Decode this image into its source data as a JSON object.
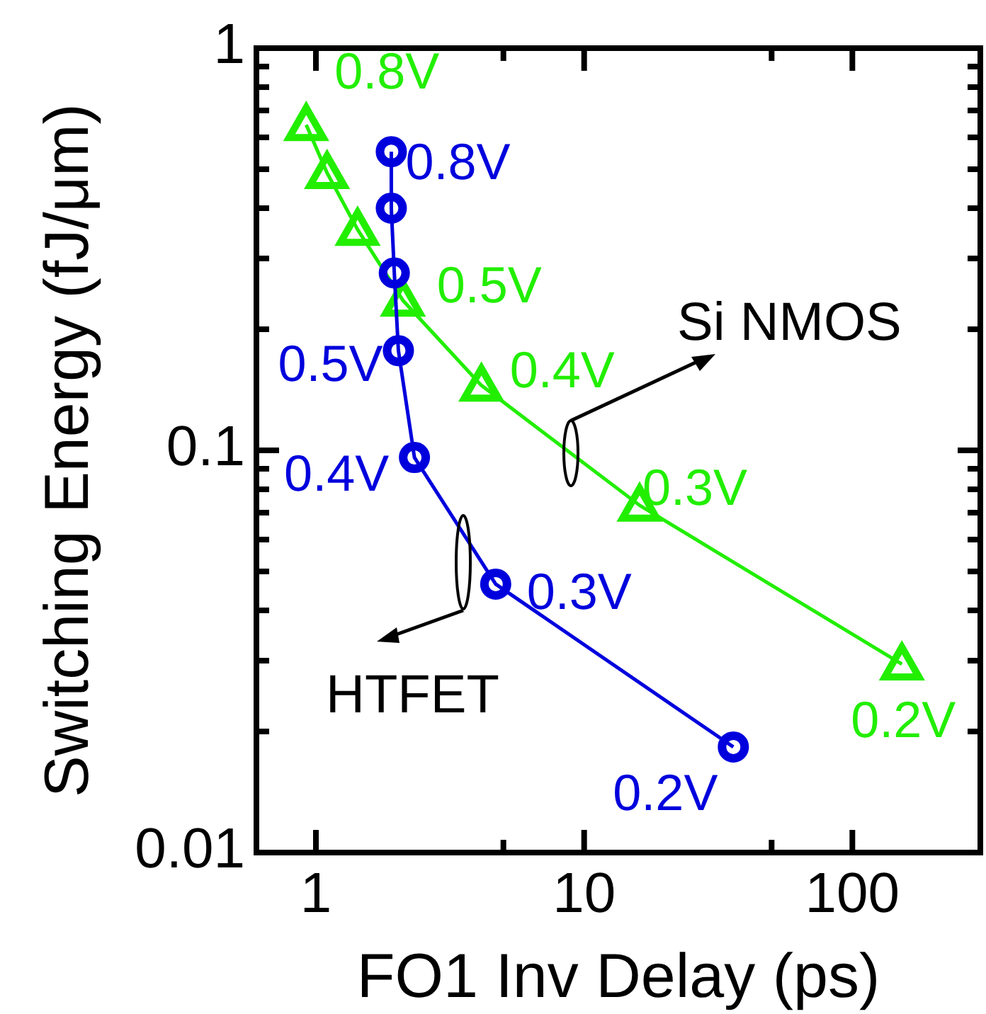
{
  "chart_data": {
    "type": "line",
    "xlabel": "FO1 Inv Delay (ps)",
    "ylabel": "Switching Energy  (fJ/μm)",
    "log": "xy",
    "xlim": [
      0.6,
      300
    ],
    "ylim": [
      0.01,
      1
    ],
    "xticks": [
      1,
      10,
      100,
      {
        "value": 5,
        "label": null
      },
      {
        "value": 50,
        "label": null
      }
    ],
    "yticks": [
      0.01,
      0.1,
      1,
      {
        "value": 0.02,
        "label": null
      },
      {
        "value": 0.03,
        "label": null
      },
      {
        "value": 0.04,
        "label": null
      },
      {
        "value": 0.05,
        "label": null
      },
      {
        "value": 0.06,
        "label": null
      },
      {
        "value": 0.07,
        "label": null
      },
      {
        "value": 0.08,
        "label": null
      },
      {
        "value": 0.09,
        "label": null
      },
      {
        "value": 0.2,
        "label": null
      },
      {
        "value": 0.3,
        "label": null
      },
      {
        "value": 0.4,
        "label": null
      },
      {
        "value": 0.5,
        "label": null
      },
      {
        "value": 0.6,
        "label": null
      },
      {
        "value": 0.7,
        "label": null
      },
      {
        "value": 0.8,
        "label": null
      },
      {
        "value": 0.9,
        "label": null
      }
    ],
    "line_style": "solid",
    "grid": false,
    "series": [
      {
        "color": "#22ee00",
        "marker": "triangle",
        "x": [
          0.92,
          1.1,
          1.43,
          2.11,
          4.14,
          16.1,
          153
        ],
        "values": [
          0.645,
          0.49,
          0.354,
          0.236,
          0.145,
          0.073,
          0.0294
        ]
      },
      {
        "color": "#0000dd",
        "marker": "circle",
        "x": [
          1.91,
          1.91,
          1.96,
          2.03,
          2.33,
          4.68,
          36
        ],
        "values": [
          0.553,
          0.4,
          0.276,
          0.177,
          0.096,
          0.0465,
          0.0183
        ]
      }
    ],
    "annotations": [
      {
        "text": "0.8V",
        "x": 0.92,
        "y": 0.645
      },
      {
        "text": "0.5V",
        "x": 2.11,
        "y": 0.236
      },
      {
        "text": "0.4V",
        "x": 4.14,
        "y": 0.145
      },
      {
        "text": "0.3V",
        "x": 16.1,
        "y": 0.073
      },
      {
        "text": "0.2V",
        "x": 153,
        "y": 0.0294
      },
      {
        "text": "0.8V",
        "x": 1.91,
        "y": 0.553
      },
      {
        "text": "0.5V",
        "x": 2.03,
        "y": 0.177
      },
      {
        "text": "0.4V",
        "x": 2.33,
        "y": 0.096
      },
      {
        "text": "0.3V",
        "x": 4.68,
        "y": 0.0465
      },
      {
        "text": "0.2V",
        "x": 36,
        "y": 0.0183
      },
      "Si NMOS",
      "HTFET"
    ]
  }
}
